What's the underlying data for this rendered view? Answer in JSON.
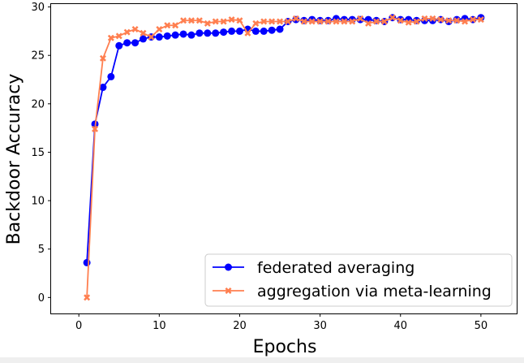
{
  "chart_data": {
    "type": "line",
    "title": "",
    "xlabel": "Epochs",
    "ylabel": "Backdoor Accuracy",
    "xlim": [
      -3.45,
      54.45
    ],
    "ylim": [
      -1.65,
      30.3
    ],
    "xticks": [
      0,
      10,
      20,
      30,
      40,
      50
    ],
    "yticks": [
      0,
      5,
      10,
      15,
      20,
      25,
      30
    ],
    "grid": false,
    "legend_position": "lower-right",
    "x": [
      1,
      2,
      3,
      4,
      5,
      6,
      7,
      8,
      9,
      10,
      11,
      12,
      13,
      14,
      15,
      16,
      17,
      18,
      19,
      20,
      21,
      22,
      23,
      24,
      25,
      26,
      27,
      28,
      29,
      30,
      31,
      32,
      33,
      34,
      35,
      36,
      37,
      38,
      39,
      40,
      41,
      42,
      43,
      44,
      45,
      46,
      47,
      48,
      49,
      50
    ],
    "series": [
      {
        "name": "federated averaging",
        "color": "#0000ff",
        "marker": "circle",
        "values": [
          3.6,
          17.9,
          21.7,
          22.8,
          26.0,
          26.3,
          26.3,
          26.7,
          26.9,
          26.9,
          27.0,
          27.1,
          27.2,
          27.1,
          27.3,
          27.3,
          27.3,
          27.4,
          27.5,
          27.5,
          27.7,
          27.5,
          27.5,
          27.6,
          27.7,
          28.5,
          28.7,
          28.6,
          28.7,
          28.6,
          28.6,
          28.8,
          28.7,
          28.7,
          28.7,
          28.7,
          28.6,
          28.5,
          28.9,
          28.7,
          28.7,
          28.6,
          28.6,
          28.6,
          28.7,
          28.5,
          28.7,
          28.8,
          28.7,
          28.9
        ]
      },
      {
        "name": "aggregation via meta-learning",
        "color": "#ff7f50",
        "marker": "x",
        "values": [
          0.0,
          17.4,
          24.7,
          26.8,
          27.0,
          27.4,
          27.7,
          27.3,
          26.9,
          27.7,
          28.1,
          28.1,
          28.6,
          28.6,
          28.6,
          28.3,
          28.5,
          28.5,
          28.7,
          28.6,
          27.3,
          28.3,
          28.5,
          28.5,
          28.5,
          28.5,
          28.8,
          28.5,
          28.5,
          28.5,
          28.5,
          28.5,
          28.5,
          28.5,
          28.8,
          28.3,
          28.5,
          28.5,
          28.9,
          28.6,
          28.4,
          28.5,
          28.8,
          28.8,
          28.7,
          28.6,
          28.6,
          28.5,
          28.7,
          28.7
        ]
      }
    ]
  }
}
